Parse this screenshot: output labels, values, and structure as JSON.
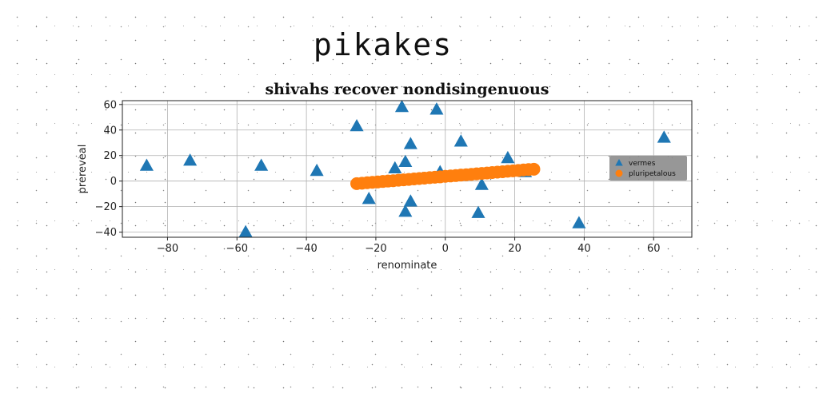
{
  "suptitle": "pikakes",
  "chart_data": {
    "type": "scatter",
    "title": "shivahs recover nondisingenuous",
    "xlabel": "renominate",
    "ylabel": "prereveal",
    "xlim": [
      -93,
      71
    ],
    "ylim": [
      -44,
      63
    ],
    "xticks": [
      -80,
      -60,
      -40,
      -20,
      0,
      20,
      40,
      60
    ],
    "yticks": [
      -40,
      -20,
      0,
      20,
      40,
      60
    ],
    "grid": true,
    "legend_position": "center-right",
    "series": [
      {
        "name": "vermes",
        "marker": "triangle",
        "color": "#1f77b4",
        "x": [
          -86,
          -73.5,
          -57.5,
          -53,
          -37,
          -25.5,
          -22,
          -14.5,
          -12.5,
          -11.5,
          -11.5,
          -10,
          -10,
          -2.5,
          -1.5,
          4.5,
          9.5,
          10.5,
          18,
          23,
          38.5,
          63
        ],
        "y": [
          12,
          16,
          -40,
          12,
          8,
          43,
          -14,
          10,
          58,
          15,
          -24,
          -16,
          29,
          56,
          7,
          31,
          -25,
          -3,
          18,
          7,
          -33,
          34
        ]
      },
      {
        "name": "pluripetalous",
        "marker": "circle",
        "color": "#ff7f0e",
        "x": [
          -25.5,
          -24,
          -22.5,
          -21,
          -19.5,
          -18,
          -16.5,
          -15,
          -13.5,
          -12,
          -10.5,
          -9,
          -7.5,
          -6,
          -4.5,
          -3,
          -1.5,
          0,
          1.5,
          3,
          4.5,
          6,
          7.5,
          9,
          10.5,
          12,
          13.5,
          15,
          16.5,
          18,
          19.5,
          21,
          22.5,
          24,
          25.5
        ],
        "y": [
          -2.0,
          -1.7,
          -1.3,
          -1.0,
          -0.7,
          -0.3,
          0.0,
          0.3,
          0.7,
          1.0,
          1.3,
          1.7,
          2.0,
          2.3,
          2.7,
          3.0,
          3.3,
          3.7,
          4.0,
          4.3,
          4.7,
          5.0,
          5.3,
          5.7,
          6.0,
          6.3,
          6.7,
          7.0,
          7.3,
          7.7,
          8.0,
          8.3,
          8.7,
          9.0,
          9.3
        ]
      }
    ]
  }
}
